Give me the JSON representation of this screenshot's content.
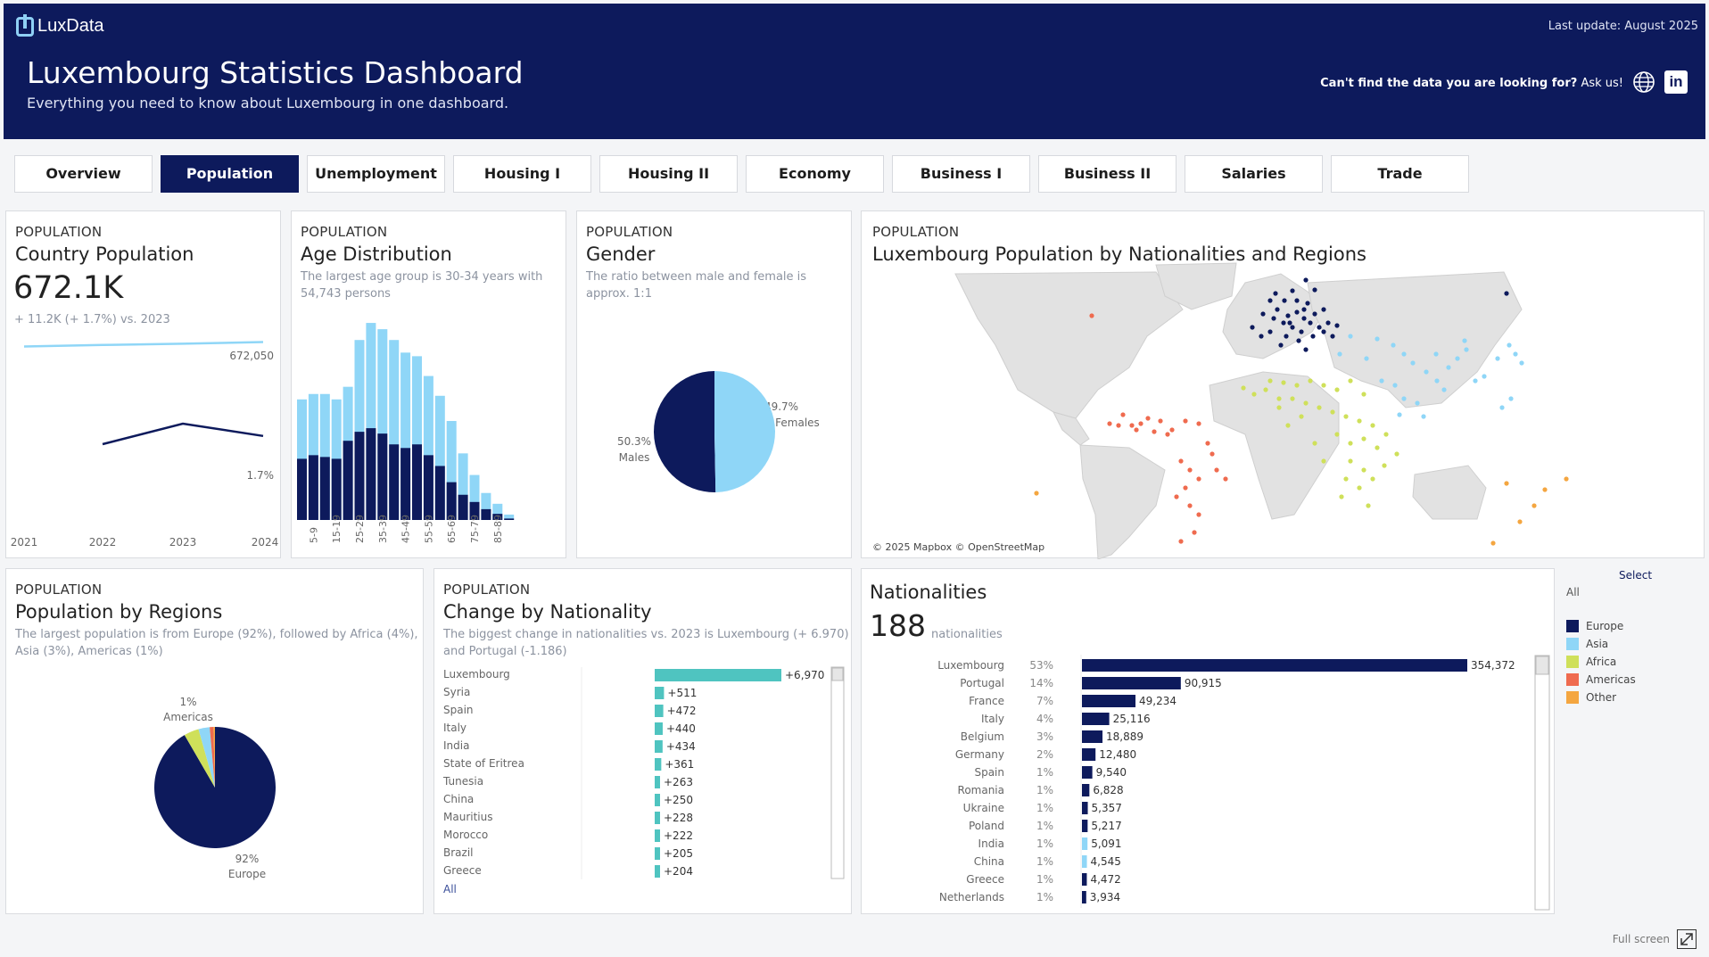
{
  "app": {
    "logo_text": "LuxData",
    "last_update": "Last update: August 2025"
  },
  "header": {
    "title": "Luxembourg Statistics Dashboard",
    "subtitle": "Everything you need to know about Luxembourg in one dashboard.",
    "ask_bold": "Can't find the data you are looking for?",
    "ask_link": "Ask us!",
    "icons": [
      "globe-icon",
      "linkedin-icon"
    ]
  },
  "tabs": [
    "Overview",
    "Population",
    "Unemployment",
    "Housing I",
    "Housing II",
    "Economy",
    "Business I",
    "Business II",
    "Salaries",
    "Trade"
  ],
  "active_tab": "Population",
  "colors": {
    "navy": "#0d1a5c",
    "light_blue": "#8fd6f7",
    "yellow_green": "#cfe05a",
    "coral": "#ef6b4f",
    "orange": "#f4a640",
    "teal": "#4fc4c0"
  },
  "country_population": {
    "kicker": "POPULATION",
    "title": "Country Population",
    "value": "672.1K",
    "change": "+ 11.2K (+ 1.7%)  vs. 2023",
    "pop_label": "672,050",
    "growth_label": "1.7%",
    "years": [
      "2021",
      "2022",
      "2023",
      "2024"
    ]
  },
  "age_distribution": {
    "kicker": "POPULATION",
    "title": "Age Distribution",
    "desc": "The largest age group is 30-34 years with 54,743 persons",
    "tick_labels": [
      "5-9",
      "15-19",
      "25-29",
      "35-39",
      "45-49",
      "55-59",
      "65-69",
      "75-79",
      "85-89"
    ]
  },
  "gender": {
    "kicker": "POPULATION",
    "title": "Gender",
    "desc": "The ratio between male and female is approx. 1:1",
    "females_pct": "49.7%",
    "females_label": "Females",
    "males_pct": "50.3%",
    "males_label": "Males"
  },
  "map": {
    "kicker": "POPULATION",
    "title": "Luxembourg Population by Nationalities and Regions",
    "attribution": "© 2025 Mapbox © OpenStreetMap"
  },
  "regions": {
    "kicker": "POPULATION",
    "title": "Population by Regions",
    "desc_line1": "The largest population is from Europe (92%), followed by Africa (4%),",
    "desc_line2": "Asia (3%), Americas (1%)",
    "americas_pct": "1%",
    "americas_label": "Americas",
    "europe_pct": "92%",
    "europe_label": "Europe"
  },
  "change_by_nationality": {
    "kicker": "POPULATION",
    "title": "Change by Nationality",
    "desc_line1": "The biggest change in nationalities vs. 2023 is Luxembourg (+ 6.970)",
    "desc_line2": "and Portugal (-1.186)",
    "all_label": "All"
  },
  "nationalities": {
    "title": "Nationalities",
    "count": "188",
    "count_label": "nationalities"
  },
  "legend": {
    "select_label": "Select",
    "all_label": "All",
    "items": [
      {
        "label": "Europe",
        "color": "#0d1a5c"
      },
      {
        "label": "Asia",
        "color": "#8fd6f7"
      },
      {
        "label": "Africa",
        "color": "#cfe05a"
      },
      {
        "label": "Americas",
        "color": "#ef6b4f"
      },
      {
        "label": "Other",
        "color": "#f4a640"
      }
    ]
  },
  "footer": {
    "full_screen_label": "Full screen"
  },
  "chart_data": [
    {
      "type": "line",
      "title": "Country Population",
      "x": [
        "2021",
        "2022",
        "2023",
        "2024"
      ],
      "series": [
        {
          "values": [
            643000,
            653000,
            661000,
            672050
          ]
        },
        {
          "values": [
            null,
            1.5,
            2.0,
            1.7
          ]
        }
      ]
    },
    {
      "type": "bar",
      "title": "Age Distribution",
      "categories": [
        "0-4",
        "5-9",
        "10-14",
        "15-19",
        "20-24",
        "25-29",
        "30-34",
        "35-39",
        "40-44",
        "45-49",
        "50-54",
        "55-59",
        "60-64",
        "65-69",
        "70-74",
        "75-79",
        "80-84",
        "85-89",
        "90+"
      ],
      "series": [
        {
          "values": [
            33500,
            35000,
            35000,
            33500,
            37000,
            50000,
            54743,
            53000,
            50000,
            46500,
            45500,
            40000,
            34500,
            27500,
            18500,
            12500,
            7500,
            4500,
            1500
          ]
        },
        {
          "values": [
            17000,
            18000,
            17500,
            17000,
            22000,
            24500,
            25500,
            24000,
            21000,
            20000,
            21000,
            18000,
            15000,
            10500,
            7000,
            5000,
            3000,
            1700,
            400
          ]
        }
      ]
    },
    {
      "type": "pie",
      "title": "Gender",
      "categories": [
        "Males",
        "Females"
      ],
      "values": [
        50.3,
        49.7
      ]
    },
    {
      "type": "pie",
      "title": "Population by Regions",
      "categories": [
        "Europe",
        "Africa",
        "Asia",
        "Americas",
        "Other"
      ],
      "values": [
        92,
        4,
        3,
        1,
        0.4
      ]
    },
    {
      "type": "bar",
      "title": "Change by Nationality",
      "categories": [
        "Luxembourg",
        "Syria",
        "Spain",
        "Italy",
        "India",
        "State of Eritrea",
        "Tunesia",
        "China",
        "Mauritius",
        "Morocco",
        "Brazil",
        "Greece"
      ],
      "values": [
        6970,
        511,
        472,
        440,
        434,
        361,
        263,
        250,
        228,
        222,
        205,
        204
      ],
      "labels": [
        "+6,970",
        "+511",
        "+472",
        "+440",
        "+434",
        "+361",
        "+263",
        "+250",
        "+228",
        "+222",
        "+205",
        "+204"
      ]
    },
    {
      "type": "bar",
      "title": "Nationalities",
      "categories": [
        "Luxembourg",
        "Portugal",
        "France",
        "Italy",
        "Belgium",
        "Germany",
        "Spain",
        "Romania",
        "Ukraine",
        "Poland",
        "India",
        "China",
        "Greece",
        "Netherlands"
      ],
      "percents": [
        "53%",
        "14%",
        "7%",
        "4%",
        "3%",
        "2%",
        "1%",
        "1%",
        "1%",
        "1%",
        "1%",
        "1%",
        "1%",
        "1%"
      ],
      "values": [
        354372,
        90915,
        49234,
        25116,
        18889,
        12480,
        9540,
        6828,
        5357,
        5217,
        5091,
        4545,
        4472,
        3934
      ],
      "labels": [
        "354,372",
        "90,915",
        "49,234",
        "25,116",
        "18,889",
        "12,480",
        "9,540",
        "6,828",
        "5,357",
        "5,217",
        "5,091",
        "4,545",
        "4,472",
        "3,934"
      ],
      "regions": [
        "Europe",
        "Europe",
        "Europe",
        "Europe",
        "Europe",
        "Europe",
        "Europe",
        "Europe",
        "Europe",
        "Europe",
        "Asia",
        "Asia",
        "Europe",
        "Europe"
      ]
    }
  ]
}
